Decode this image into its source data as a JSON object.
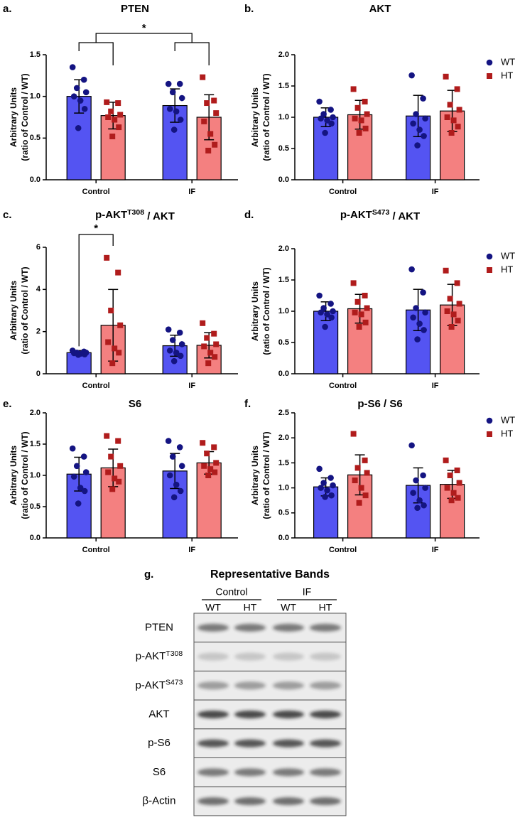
{
  "chart_data": [
    {
      "type": "bar",
      "label": "a.",
      "title": "PTEN",
      "ylabel": [
        "Arbitrary Units",
        "(ratio of Control / WT)"
      ],
      "categories": [
        "Control",
        "IF"
      ],
      "ylim": [
        0,
        1.5
      ],
      "yticks": [
        {
          "value": 0,
          "label": "0.0"
        },
        0.5,
        {
          "value": 1,
          "label": "1.0"
        },
        1.5
      ],
      "annotations": [
        "*"
      ],
      "series": [
        {
          "color": "#5454f2",
          "marker_color": "#141482",
          "values": [
            1.0,
            0.89
          ],
          "errors": [
            0.2,
            0.2
          ],
          "points": [
            [
              1.35,
              1.2,
              1.1,
              1.05,
              1.0,
              0.95,
              0.85,
              0.62
            ],
            [
              1.15,
              1.15,
              1.05,
              0.98,
              0.85,
              0.82,
              0.72,
              0.6
            ]
          ]
        },
        {
          "color": "#f48080",
          "marker_color": "#b01c1c",
          "values": [
            0.77,
            0.75
          ],
          "errors": [
            0.16,
            0.27
          ],
          "points": [
            [
              0.93,
              0.92,
              0.82,
              0.78,
              0.75,
              0.72,
              0.63,
              0.52
            ],
            [
              1.23,
              0.95,
              0.92,
              0.8,
              0.7,
              0.55,
              0.42,
              0.35
            ]
          ]
        }
      ]
    },
    {
      "type": "bar",
      "label": "b.",
      "title": "AKT",
      "ylabel": [
        "Arbitrary Units",
        "(ratio of Control / WT)"
      ],
      "categories": [
        "Control",
        "IF"
      ],
      "ylim": [
        0,
        2
      ],
      "yticks": [
        {
          "value": 0,
          "label": "0.0"
        },
        0.5,
        {
          "value": 1,
          "label": "1.0"
        },
        1.5,
        {
          "value": 2,
          "label": "2.0"
        }
      ],
      "legend": "right",
      "series": [
        {
          "name": "WT",
          "color": "#5454f2",
          "marker_color": "#141482",
          "values": [
            1.0,
            1.02
          ],
          "errors": [
            0.15,
            0.33
          ],
          "points": [
            [
              1.25,
              1.12,
              1.05,
              1.0,
              0.98,
              0.95,
              0.9,
              0.75
            ],
            [
              1.67,
              1.3,
              1.05,
              0.98,
              0.9,
              0.8,
              0.7,
              0.55
            ]
          ]
        },
        {
          "name": "HT",
          "color": "#f48080",
          "marker_color": "#b01c1c",
          "values": [
            1.04,
            1.1
          ],
          "errors": [
            0.23,
            0.33
          ],
          "points": [
            [
              1.45,
              1.25,
              1.15,
              1.05,
              0.98,
              0.95,
              0.82,
              0.75
            ],
            [
              1.65,
              1.45,
              1.2,
              1.12,
              1.0,
              0.95,
              0.85,
              0.75
            ]
          ]
        }
      ]
    },
    {
      "type": "bar",
      "label": "c.",
      "title": {
        "text": "p-AKT",
        "sup": "T308",
        "tail": " / AKT"
      },
      "ylabel": [
        "Arbitrary Units",
        "(ratio of Control / WT)"
      ],
      "categories": [
        "Control",
        "IF"
      ],
      "ylim": [
        0,
        6
      ],
      "yticks": [
        0,
        2,
        4,
        6
      ],
      "annotations": [
        "*"
      ],
      "series": [
        {
          "color": "#5454f2",
          "marker_color": "#141482",
          "values": [
            1.0,
            1.33
          ],
          "errors": [
            0.1,
            0.5
          ],
          "points": [
            [
              1.1,
              1.05,
              1.0,
              1.0,
              0.98,
              0.95,
              0.92,
              0.9
            ],
            [
              2.1,
              1.95,
              1.6,
              1.4,
              1.1,
              1.0,
              0.85,
              0.6
            ]
          ]
        },
        {
          "color": "#f48080",
          "marker_color": "#b01c1c",
          "values": [
            2.3,
            1.35
          ],
          "errors": [
            1.7,
            0.6
          ],
          "points": [
            [
              5.5,
              4.8,
              3.0,
              2.3,
              1.5,
              1.2,
              1.0,
              0.5
            ],
            [
              2.4,
              1.9,
              1.7,
              1.4,
              1.3,
              1.0,
              0.8,
              0.5
            ]
          ]
        }
      ]
    },
    {
      "type": "bar",
      "label": "d.",
      "title": {
        "text": "p-AKT",
        "sup": "S473",
        "tail": " / AKT"
      },
      "ylabel": [
        "Arbitrary Units",
        "(ratio of Control / WT)"
      ],
      "categories": [
        "Control",
        "IF"
      ],
      "ylim": [
        0,
        2
      ],
      "yticks": [
        {
          "value": 0,
          "label": "0.0"
        },
        0.5,
        {
          "value": 1,
          "label": "1.0"
        },
        1.5,
        {
          "value": 2,
          "label": "2.0"
        }
      ],
      "legend": "right",
      "series": [
        {
          "name": "WT",
          "color": "#5454f2",
          "marker_color": "#141482",
          "values": [
            1.0,
            1.02
          ],
          "errors": [
            0.15,
            0.33
          ],
          "points": [
            [
              1.25,
              1.12,
              1.05,
              1.0,
              0.98,
              0.95,
              0.9,
              0.75
            ],
            [
              1.67,
              1.3,
              1.05,
              0.98,
              0.9,
              0.8,
              0.7,
              0.55
            ]
          ]
        },
        {
          "name": "HT",
          "color": "#f48080",
          "marker_color": "#b01c1c",
          "values": [
            1.04,
            1.1
          ],
          "errors": [
            0.23,
            0.33
          ],
          "points": [
            [
              1.45,
              1.25,
              1.15,
              1.05,
              0.98,
              0.95,
              0.82,
              0.75
            ],
            [
              1.65,
              1.45,
              1.2,
              1.12,
              1.0,
              0.95,
              0.85,
              0.75
            ]
          ]
        }
      ]
    },
    {
      "type": "bar",
      "label": "e.",
      "title": "S6",
      "ylabel": [
        "Arbitrary Units",
        "(ratio of Control / WT)"
      ],
      "categories": [
        "Control",
        "IF"
      ],
      "ylim": [
        0,
        2
      ],
      "yticks": [
        {
          "value": 0,
          "label": "0.0"
        },
        0.5,
        {
          "value": 1,
          "label": "1.0"
        },
        1.5,
        {
          "value": 2,
          "label": "2.0"
        }
      ],
      "series": [
        {
          "color": "#5454f2",
          "marker_color": "#141482",
          "values": [
            1.02,
            1.07
          ],
          "errors": [
            0.27,
            0.28
          ],
          "points": [
            [
              1.43,
              1.3,
              1.15,
              1.05,
              0.98,
              0.8,
              0.75,
              0.55
            ],
            [
              1.55,
              1.45,
              1.3,
              1.15,
              1.0,
              0.85,
              0.75,
              0.65
            ]
          ]
        },
        {
          "color": "#f48080",
          "marker_color": "#b01c1c",
          "values": [
            1.12,
            1.2
          ],
          "errors": [
            0.3,
            0.18
          ],
          "points": [
            [
              1.63,
              1.55,
              1.3,
              1.15,
              1.05,
              0.95,
              0.9,
              0.78
            ],
            [
              1.52,
              1.45,
              1.35,
              1.2,
              1.15,
              1.1,
              1.05,
              1.0
            ]
          ]
        }
      ]
    },
    {
      "type": "bar",
      "label": "f.",
      "title": "p-S6 / S6",
      "ylabel": [
        "Arbitrary Units",
        "(ratio of Control / WT)"
      ],
      "categories": [
        "Control",
        "IF"
      ],
      "ylim": [
        0,
        2.5
      ],
      "yticks": [
        {
          "value": 0,
          "label": "0.0"
        },
        0.5,
        {
          "value": 1,
          "label": "1.0"
        },
        1.5,
        {
          "value": 2,
          "label": "2.0"
        },
        2.5
      ],
      "legend": "right",
      "series": [
        {
          "name": "WT",
          "color": "#5454f2",
          "marker_color": "#141482",
          "values": [
            1.02,
            1.05
          ],
          "errors": [
            0.18,
            0.35
          ],
          "points": [
            [
              1.38,
              1.2,
              1.1,
              1.05,
              1.0,
              0.95,
              0.85,
              0.82
            ],
            [
              1.85,
              1.25,
              1.15,
              1.0,
              0.9,
              0.75,
              0.65,
              0.6
            ]
          ]
        },
        {
          "name": "HT",
          "color": "#f48080",
          "marker_color": "#b01c1c",
          "values": [
            1.26,
            1.07
          ],
          "errors": [
            0.4,
            0.28
          ],
          "points": [
            [
              2.08,
              1.55,
              1.4,
              1.3,
              1.15,
              1.0,
              0.85,
              0.7
            ],
            [
              1.55,
              1.35,
              1.25,
              1.1,
              1.0,
              0.9,
              0.8,
              0.75
            ]
          ]
        }
      ]
    }
  ],
  "blot": {
    "label": "g.",
    "title": "Representative Bands",
    "groups": [
      "Control",
      "IF"
    ],
    "lanes": [
      "WT",
      "HT",
      "WT",
      "HT"
    ],
    "rows": [
      {
        "text": "PTEN"
      },
      {
        "text": "p-AKT",
        "sup": "T308"
      },
      {
        "text": "p-AKT",
        "sup": "S473"
      },
      {
        "text": "AKT"
      },
      {
        "text": "p-S6"
      },
      {
        "text": "S6"
      },
      {
        "text": "β-Actin"
      }
    ]
  }
}
